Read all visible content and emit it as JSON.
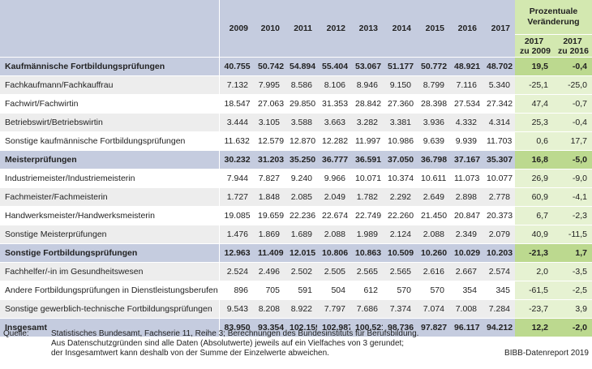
{
  "header": {
    "years": [
      "2009",
      "2010",
      "2011",
      "2012",
      "2013",
      "2014",
      "2015",
      "2016",
      "2017"
    ],
    "pct_title_line1": "Prozentuale",
    "pct_title_line2": "Veränderung",
    "pct_col1_line1": "2017",
    "pct_col1_line2": "zu 2009",
    "pct_col2_line1": "2017",
    "pct_col2_line2": "zu 2016"
  },
  "rows": [
    {
      "label": "Kaufmännische Fortbildungsprüfungen",
      "values": [
        "40.755",
        "50.742",
        "54.894",
        "55.404",
        "53.067",
        "51.177",
        "50.772",
        "48.921",
        "48.702"
      ],
      "pct": [
        "19,5",
        "-0,4"
      ]
    },
    {
      "label": "Fachkaufmann/Fachkauffrau",
      "values": [
        "7.132",
        "7.995",
        "8.586",
        "8.106",
        "8.946",
        "9.150",
        "8.799",
        "7.116",
        "5.340"
      ],
      "pct": [
        "-25,1",
        "-25,0"
      ]
    },
    {
      "label": "Fachwirt/Fachwirtin",
      "values": [
        "18.547",
        "27.063",
        "29.850",
        "31.353",
        "28.842",
        "27.360",
        "28.398",
        "27.534",
        "27.342"
      ],
      "pct": [
        "47,4",
        "-0,7"
      ]
    },
    {
      "label": "Betriebswirt/Betriebswirtin",
      "values": [
        "3.444",
        "3.105",
        "3.588",
        "3.663",
        "3.282",
        "3.381",
        "3.936",
        "4.332",
        "4.314"
      ],
      "pct": [
        "25,3",
        "-0,4"
      ]
    },
    {
      "label": "Sonstige kaufmännische Fortbildungsprüfungen",
      "values": [
        "11.632",
        "12.579",
        "12.870",
        "12.282",
        "11.997",
        "10.986",
        "9.639",
        "9.939",
        "11.703"
      ],
      "pct": [
        "0,6",
        "17,7"
      ]
    },
    {
      "label": "Meisterprüfungen",
      "values": [
        "30.232",
        "31.203",
        "35.250",
        "36.777",
        "36.591",
        "37.050",
        "36.798",
        "37.167",
        "35.307"
      ],
      "pct": [
        "16,8",
        "-5,0"
      ]
    },
    {
      "label": "Industriemeister/Industriemeisterin",
      "values": [
        "7.944",
        "7.827",
        "9.240",
        "9.966",
        "10.071",
        "10.374",
        "10.611",
        "11.073",
        "10.077"
      ],
      "pct": [
        "26,9",
        "-9,0"
      ]
    },
    {
      "label": "Fachmeister/Fachmeisterin",
      "values": [
        "1.727",
        "1.848",
        "2.085",
        "2.049",
        "1.782",
        "2.292",
        "2.649",
        "2.898",
        "2.778"
      ],
      "pct": [
        "60,9",
        "-4,1"
      ]
    },
    {
      "label": "Handwerksmeister/Handwerksmeisterin",
      "values": [
        "19.085",
        "19.659",
        "22.236",
        "22.674",
        "22.749",
        "22.260",
        "21.450",
        "20.847",
        "20.373"
      ],
      "pct": [
        "6,7",
        "-2,3"
      ]
    },
    {
      "label": "Sonstige Meisterprüfungen",
      "values": [
        "1.476",
        "1.869",
        "1.689",
        "2.088",
        "1.989",
        "2.124",
        "2.088",
        "2.349",
        "2.079"
      ],
      "pct": [
        "40,9",
        "-11,5"
      ]
    },
    {
      "label": "Sonstige Fortbildungsprüfungen",
      "values": [
        "12.963",
        "11.409",
        "12.015",
        "10.806",
        "10.863",
        "10.509",
        "10.260",
        "10.029",
        "10.203"
      ],
      "pct": [
        "-21,3",
        "1,7"
      ]
    },
    {
      "label": "Fachhelfer/-in im Gesundheitswesen",
      "values": [
        "2.524",
        "2.496",
        "2.502",
        "2.505",
        "2.565",
        "2.565",
        "2.616",
        "2.667",
        "2.574"
      ],
      "pct": [
        "2,0",
        "-3,5"
      ]
    },
    {
      "label": "Andere Fortbildungsprüfungen in Dienstleistungsberufen",
      "values": [
        "896",
        "705",
        "591",
        "504",
        "612",
        "570",
        "570",
        "354",
        "345"
      ],
      "pct": [
        "-61,5",
        "-2,5"
      ]
    },
    {
      "label": "Sonstige gewerblich-technische Fortbildungsprüfungen",
      "values": [
        "9.543",
        "8.208",
        "8.922",
        "7.797",
        "7.686",
        "7.374",
        "7.074",
        "7.008",
        "7.284"
      ],
      "pct": [
        "-23,7",
        "3,9"
      ]
    },
    {
      "label": "Insgesamt",
      "values": [
        "83.950",
        "93.354",
        "102.159",
        "102.987",
        "100.521",
        "98.736",
        "97.827",
        "96.117",
        "94.212"
      ],
      "pct": [
        "12,2",
        "-2,0"
      ]
    }
  ],
  "footer": {
    "source_label": "Quelle:",
    "source_line1": "Statistisches Bundesamt, Fachserie 11, Reihe 3; Berechnungen des Bundesinstituts für Berufsbildung.",
    "source_line2": "Aus Datenschutzgründen sind alle Daten (Absolutwerte) jeweils auf ein Vielfaches von 3 gerundet;",
    "source_line3": "der Insgesamtwert kann deshalb von der Summe der Einzelwerte abweichen.",
    "credit": "BIBB-Datenreport 2019"
  },
  "colors": {
    "header_bg": "#c5ccdf",
    "pct_header_bg": "#d3e8b0",
    "pct_cell_bg": "#e6f2d2",
    "total_pct_bg": "#bcd98f",
    "stripe_bg": "#ededed"
  }
}
